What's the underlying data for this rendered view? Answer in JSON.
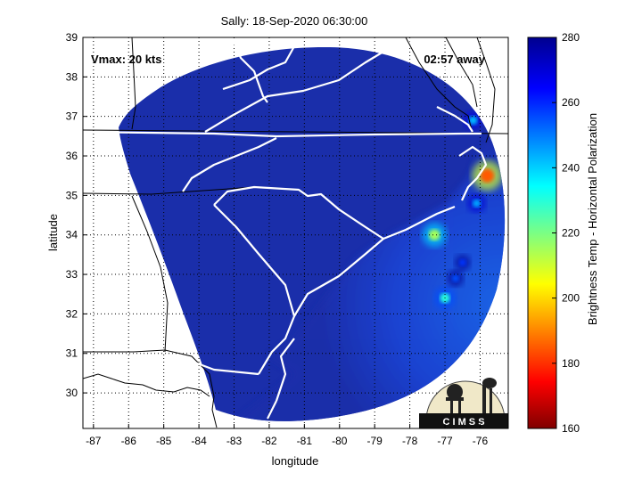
{
  "chart_data": {
    "type": "heatmap",
    "title": "Sally: 18-Sep-2020 06:30:00",
    "xlabel": "longitude",
    "ylabel": "latitude",
    "xlim": [
      -87.3,
      -75.2
    ],
    "ylim": [
      29.1,
      39
    ],
    "x_ticks": [
      -87,
      -86,
      -85,
      -84,
      -83,
      -82,
      -81,
      -80,
      -79,
      -78,
      -77,
      -76
    ],
    "y_ticks": [
      30,
      31,
      32,
      33,
      34,
      35,
      36,
      37,
      38,
      39
    ],
    "grid": true,
    "annotation_left": "Vmax: 20 kts",
    "annotation_right": "02:57 away",
    "swath_background_k": 272,
    "colorbar": {
      "label": "Brightness Temp - Horizontal Polarization",
      "min": 160,
      "max": 280,
      "ticks": [
        160,
        180,
        200,
        220,
        240,
        260,
        280
      ]
    },
    "hotspots": [
      {
        "lon": -75.8,
        "lat": 35.5,
        "value": 185
      },
      {
        "lon": -77.0,
        "lat": 32.4,
        "value": 230
      },
      {
        "lon": -77.3,
        "lat": 34.0,
        "value": 215
      },
      {
        "lon": -76.1,
        "lat": 34.8,
        "value": 245
      },
      {
        "lon": -76.2,
        "lat": 36.9,
        "value": 242
      },
      {
        "lon": -76.7,
        "lat": 32.9,
        "value": 255
      },
      {
        "lon": -76.5,
        "lat": 33.3,
        "value": 258
      }
    ],
    "logo_text": "C I M S S"
  },
  "colors": {
    "swath_base": "#1a2eaa",
    "ocean_blue": "#1a4ae0",
    "state_border": "#ffffff",
    "coast": "#000000"
  }
}
